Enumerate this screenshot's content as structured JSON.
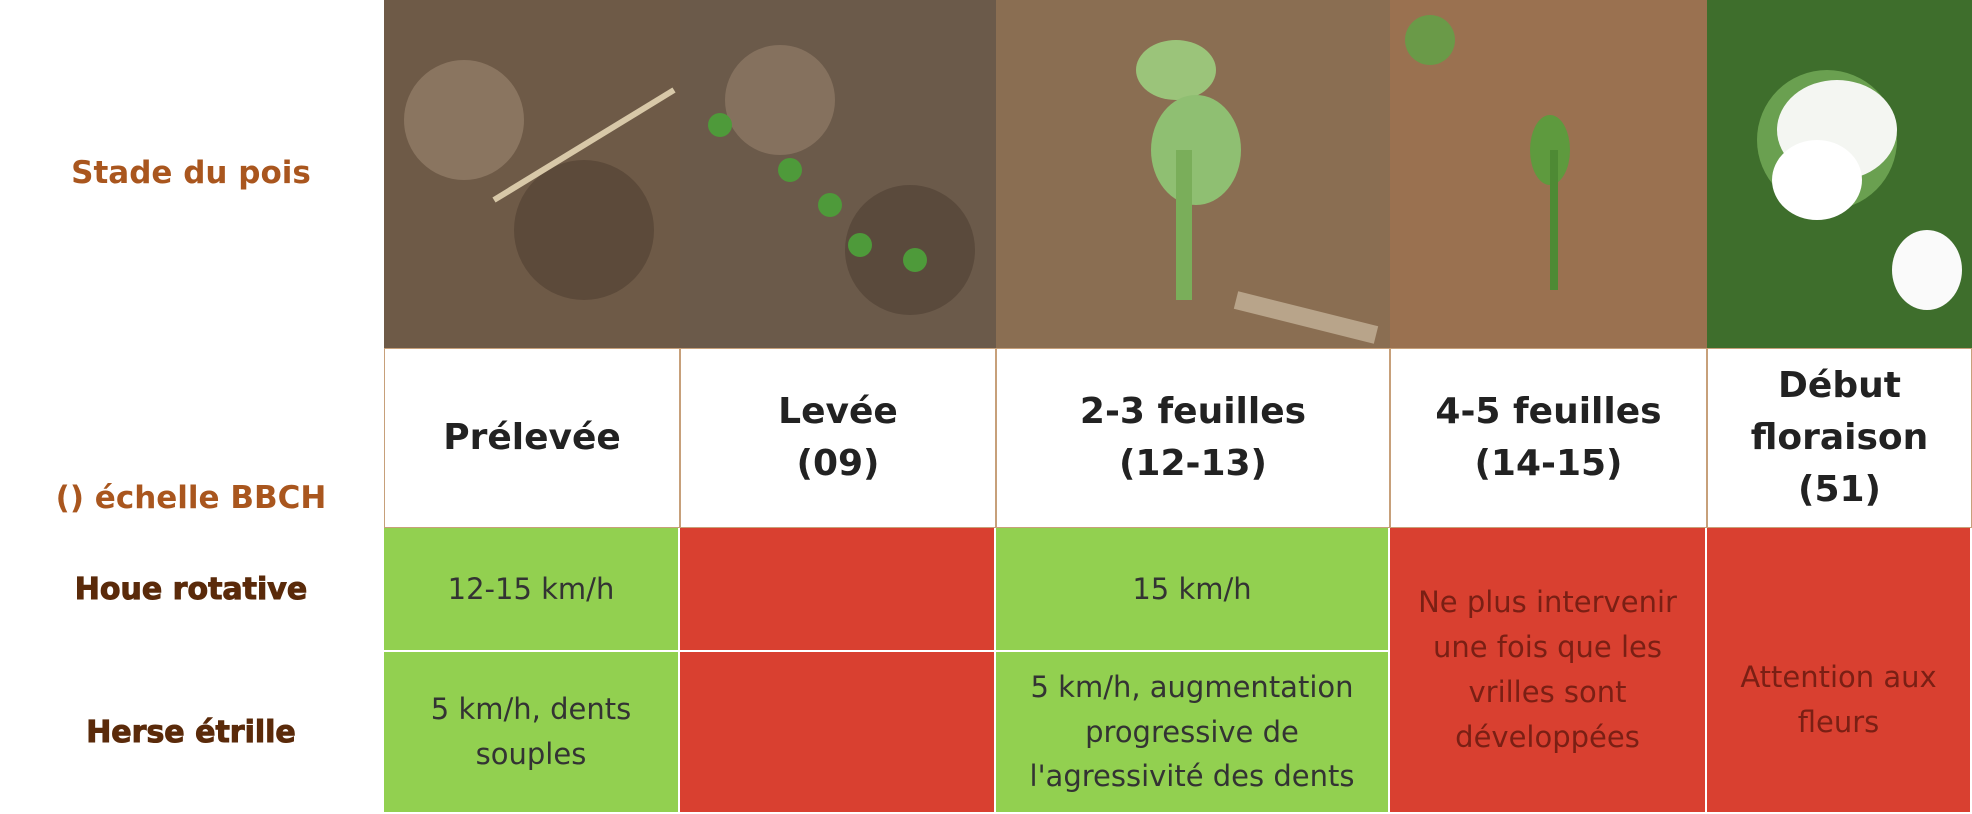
{
  "header": {
    "stage_label": "Stade du pois",
    "scale_label": "() échelle BBCH"
  },
  "stages": [
    {
      "name": "Prélevée"
    },
    {
      "name": "Levée",
      "bbch": "(09)"
    },
    {
      "name": "2-3 feuilles",
      "bbch": "(12-13)"
    },
    {
      "name": "4-5 feuilles",
      "bbch": "(14-15)"
    },
    {
      "name": "Début floraison",
      "bbch": "(51)"
    }
  ],
  "rows": [
    {
      "tool": "Houe rotative",
      "cells": [
        "12-15 km/h",
        null,
        "15 km/h"
      ]
    },
    {
      "tool": "Herse étrille",
      "cells": [
        "5 km/h, dents souples",
        null,
        "5 km/h, augmentation progressive de l'agressivité des dents"
      ]
    }
  ],
  "merged": [
    "Ne plus intervenir une fois que les vrilles sont développées",
    "Attention aux fleurs"
  ]
}
